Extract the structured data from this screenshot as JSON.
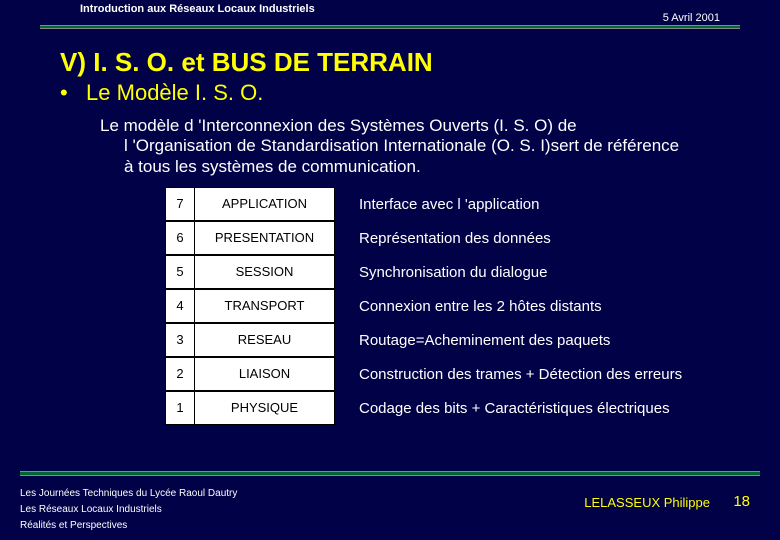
{
  "header": {
    "title": "Introduction aux Réseaux Locaux Industriels",
    "date": "5 Avril 2001"
  },
  "main": {
    "title": "V) I. S. O. et BUS DE TERRAIN",
    "bullet": "•",
    "subtitle": "Le Modèle I. S. O.",
    "para_line1": "Le modèle d 'Interconnexion des Systèmes Ouverts (I. S. O) de",
    "para_line2": "l 'Organisation de Standardisation Internationale (O. S. I)sert de référence",
    "para_line3": "à tous les systèmes de communication."
  },
  "osi": {
    "rows": [
      {
        "num": "7",
        "name": "APPLICATION",
        "desc": "Interface avec l 'application"
      },
      {
        "num": "6",
        "name": "PRESENTATION",
        "desc": "Représentation des données"
      },
      {
        "num": "5",
        "name": "SESSION",
        "desc": "Synchronisation du dialogue"
      },
      {
        "num": "4",
        "name": "TRANSPORT",
        "desc": "Connexion entre les 2 hôtes distants"
      },
      {
        "num": "3",
        "name": "RESEAU",
        "desc": "Routage=Acheminement des paquets"
      },
      {
        "num": "2",
        "name": "LIAISON",
        "desc": "Construction des trames + Détection des erreurs"
      },
      {
        "num": "1",
        "name": "PHYSIQUE",
        "desc": "Codage des bits + Caractéristiques électriques"
      }
    ]
  },
  "footer": {
    "line1": "Les Journées Techniques du Lycée Raoul Dautry",
    "line2": "Les Réseaux Locaux Industriels",
    "line3": "Réalités et Perspectives",
    "author": "LELASSEUX Philippe",
    "page": "18"
  },
  "colors": {
    "background": "#010148",
    "accent": "#ffff00",
    "rule": "#006633",
    "text": "#ffffff",
    "cell_bg": "#ffffff",
    "cell_text": "#000000"
  }
}
